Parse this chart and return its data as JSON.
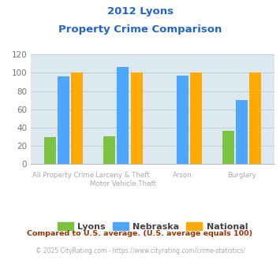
{
  "title_line1": "2012 Lyons",
  "title_line2": "Property Crime Comparison",
  "title_color": "#2266cc",
  "cat_labels_row1": [
    "",
    "Larceny & Theft",
    "Arson",
    ""
  ],
  "cat_labels_row2": [
    "All Property Crime",
    "Motor Vehicle Theft",
    "",
    "Burglary"
  ],
  "lyons": [
    29,
    30,
    0,
    36
  ],
  "nebraska": [
    96,
    106,
    97,
    70
  ],
  "national": [
    100,
    100,
    100,
    100
  ],
  "lyons_color": "#7dc242",
  "nebraska_color": "#4da6ff",
  "national_color": "#ffaa00",
  "bg_color": "#dce9f0",
  "ylim": [
    0,
    120
  ],
  "yticks": [
    0,
    20,
    40,
    60,
    80,
    100,
    120
  ],
  "ylabel_color": "#777777",
  "footnote1": "Compared to U.S. average. (U.S. average equals 100)",
  "footnote2": "© 2025 CityRating.com - https://www.cityrating.com/crime-statistics/",
  "footnote1_color": "#993300",
  "footnote2_color": "#aaaaaa",
  "grid_color": "#c0cdd8",
  "label_color": "#aaaaaa"
}
